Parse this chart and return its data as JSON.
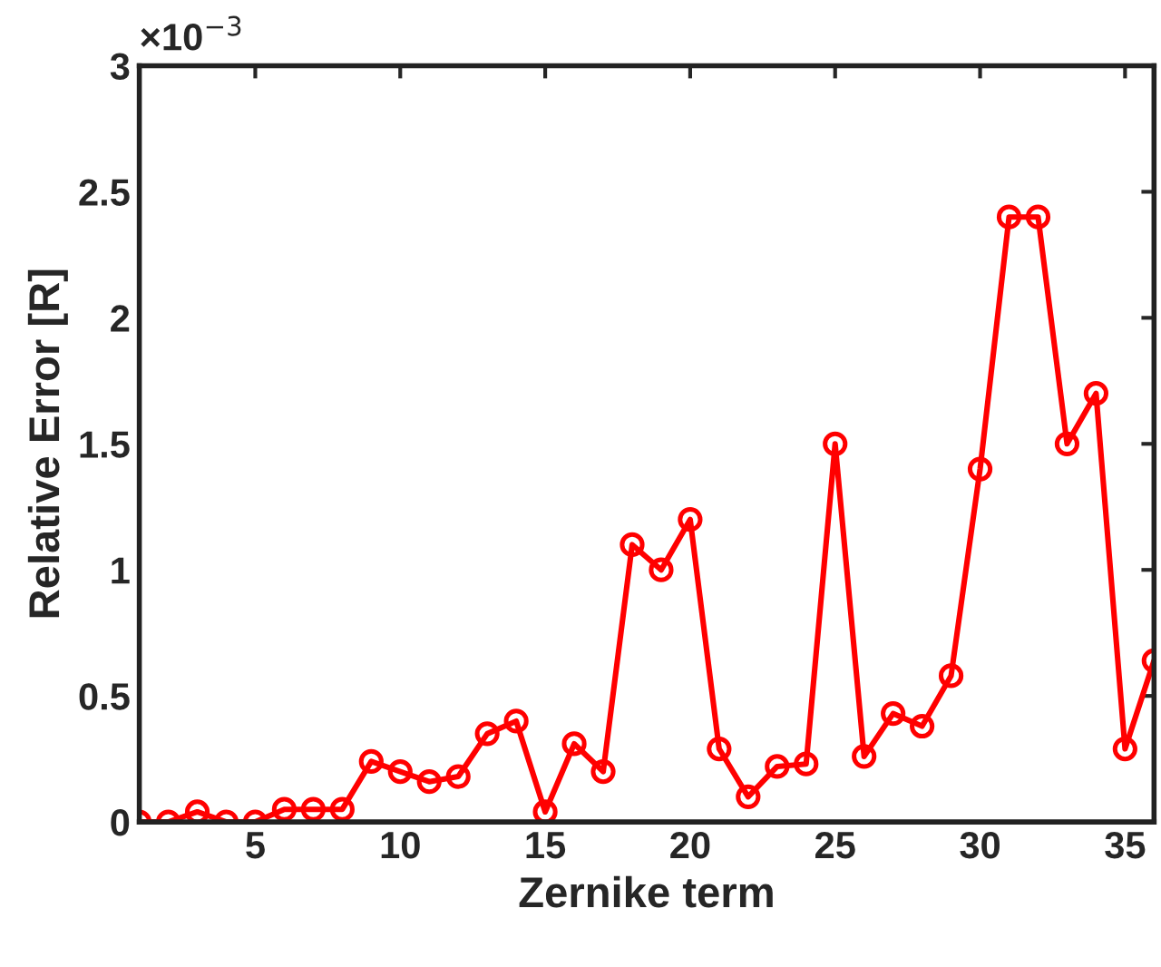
{
  "chart_data": {
    "type": "line",
    "xlabel": "Zernike term",
    "ylabel": "Relative Error [R]",
    "annotations": [
      "×10$^{−3}$"
    ],
    "x": [
      1,
      2,
      3,
      4,
      5,
      6,
      7,
      8,
      9,
      10,
      11,
      12,
      13,
      14,
      15,
      16,
      17,
      18,
      19,
      20,
      21,
      22,
      23,
      24,
      25,
      26,
      27,
      28,
      29,
      30,
      31,
      32,
      33,
      34,
      35,
      36
    ],
    "series": [
      {
        "color": "#ff0000",
        "values": [
          0,
          0,
          0.04,
          0,
          0,
          0.05,
          0.05,
          0.05,
          0.24,
          0.2,
          0.16,
          0.18,
          0.35,
          0.4,
          0.04,
          0.31,
          0.2,
          1.1,
          1.0,
          1.2,
          0.29,
          0.1,
          0.22,
          0.23,
          1.5,
          0.26,
          0.43,
          0.38,
          0.58,
          1.4,
          2.4,
          2.4,
          1.5,
          1.7,
          0.29,
          0.64
        ]
      }
    ],
    "xlim": [
      1,
      36
    ],
    "xticks": [
      5,
      10,
      15,
      20,
      25,
      30,
      35
    ],
    "ylim": [
      0,
      3
    ],
    "yticks": [
      0,
      0.5,
      1,
      1.5,
      2,
      2.5,
      3
    ],
    "grid": false,
    "legend": false,
    "marker": "circle",
    "line_style": "solid"
  }
}
